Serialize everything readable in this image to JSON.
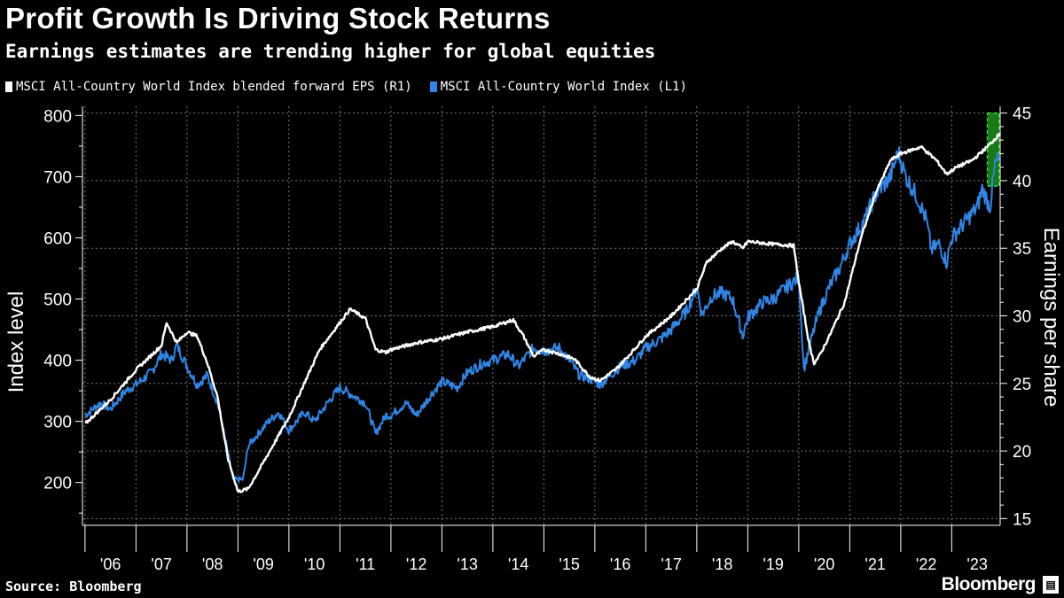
{
  "header": {
    "title": "Profit Growth Is Driving Stock Returns",
    "subtitle": "Earnings estimates are trending higher for global equities"
  },
  "legend": {
    "items": [
      {
        "label": "MSCI All-Country World Index blended forward EPS (R1)",
        "color": "#ffffff"
      },
      {
        "label": "MSCI All-Country World Index (L1)",
        "color": "#2f86e6"
      }
    ]
  },
  "footer": {
    "source": "Source: Bloomberg",
    "brand": "Bloomberg"
  },
  "chart_data": {
    "type": "line",
    "title": "Profit Growth Is Driving Stock Returns",
    "x_start": 2005.95,
    "x_end": 2023.95,
    "x_tick_labels": [
      "'06",
      "'07",
      "'08",
      "'09",
      "'10",
      "'11",
      "'12",
      "'13",
      "'14",
      "'15",
      "'16",
      "'17",
      "'18",
      "'19",
      "'20",
      "'21",
      "'22",
      "'23"
    ],
    "left_axis": {
      "label": "Index level",
      "ylim": [
        130,
        815
      ],
      "ticks": [
        200,
        300,
        400,
        500,
        600,
        700,
        800
      ]
    },
    "right_axis": {
      "label": "Earnings per share",
      "ylim": [
        14.5,
        45.5
      ],
      "ticks": [
        15,
        20,
        25,
        30,
        35,
        40,
        45
      ]
    },
    "grid": true,
    "highlight": {
      "x": [
        2023.7,
        2024.0
      ],
      "eps_range": [
        39.6,
        45
      ],
      "color": "#1fa31f"
    },
    "series": [
      {
        "name": "MSCI All-Country World Index (L1)",
        "axis": "left",
        "color": "#2f86e6",
        "x": [
          2006.0,
          2006.3,
          2006.5,
          2006.8,
          2007.0,
          2007.3,
          2007.5,
          2007.7,
          2007.8,
          2008.0,
          2008.2,
          2008.4,
          2008.6,
          2008.8,
          2008.9,
          2009.1,
          2009.2,
          2009.4,
          2009.6,
          2009.8,
          2010.0,
          2010.3,
          2010.5,
          2010.8,
          2011.0,
          2011.3,
          2011.5,
          2011.7,
          2011.9,
          2012.0,
          2012.3,
          2012.5,
          2012.8,
          2013.0,
          2013.3,
          2013.5,
          2013.8,
          2014.0,
          2014.3,
          2014.5,
          2014.8,
          2015.0,
          2015.3,
          2015.5,
          2015.7,
          2015.9,
          2016.1,
          2016.3,
          2016.5,
          2016.8,
          2017.0,
          2017.3,
          2017.5,
          2017.8,
          2018.0,
          2018.1,
          2018.3,
          2018.5,
          2018.7,
          2018.9,
          2019.0,
          2019.3,
          2019.5,
          2019.7,
          2020.0,
          2020.1,
          2020.2,
          2020.4,
          2020.6,
          2020.8,
          2021.0,
          2021.3,
          2021.5,
          2021.8,
          2021.95,
          2022.1,
          2022.3,
          2022.5,
          2022.6,
          2022.75,
          2022.9,
          2023.0,
          2023.2,
          2023.4,
          2023.5,
          2023.6,
          2023.75,
          2023.85,
          2023.95
        ],
        "values": [
          310,
          330,
          320,
          350,
          360,
          380,
          410,
          400,
          425,
          390,
          360,
          375,
          330,
          250,
          205,
          205,
          260,
          280,
          300,
          315,
          285,
          315,
          300,
          335,
          355,
          340,
          330,
          280,
          310,
          310,
          330,
          310,
          345,
          365,
          355,
          380,
          395,
          400,
          410,
          390,
          420,
          415,
          420,
          400,
          375,
          370,
          360,
          375,
          390,
          400,
          420,
          435,
          450,
          480,
          520,
          475,
          505,
          510,
          500,
          440,
          470,
          495,
          500,
          515,
          535,
          385,
          420,
          480,
          520,
          550,
          590,
          630,
          670,
          700,
          740,
          700,
          670,
          630,
          580,
          590,
          560,
          600,
          620,
          640,
          650,
          680,
          650,
          720,
          730
        ],
        "values_note": "index level, L1 axis"
      },
      {
        "name": "MSCI All-Country World Index blended forward EPS (R1)",
        "axis": "right",
        "color": "#ffffff",
        "x": [
          2006.0,
          2006.5,
          2007.0,
          2007.5,
          2007.6,
          2007.8,
          2008.0,
          2008.2,
          2008.4,
          2008.6,
          2008.8,
          2009.0,
          2009.2,
          2009.4,
          2009.7,
          2010.0,
          2010.3,
          2010.6,
          2010.9,
          2011.2,
          2011.5,
          2011.7,
          2011.9,
          2012.0,
          2012.5,
          2013.0,
          2013.5,
          2014.0,
          2014.4,
          2014.6,
          2014.8,
          2015.0,
          2015.3,
          2015.6,
          2015.9,
          2016.1,
          2016.4,
          2016.7,
          2017.0,
          2017.5,
          2018.0,
          2018.2,
          2018.5,
          2018.7,
          2018.9,
          2019.0,
          2019.5,
          2019.9,
          2020.0,
          2020.2,
          2020.3,
          2020.4,
          2020.6,
          2020.9,
          2021.2,
          2021.5,
          2021.8,
          2022.0,
          2022.4,
          2022.7,
          2022.9,
          2023.1,
          2023.4,
          2023.7,
          2023.95
        ],
        "values": [
          22.0,
          23.8,
          26.0,
          27.8,
          29.5,
          28.0,
          28.8,
          28.5,
          26.5,
          24.0,
          19.5,
          17.0,
          17.2,
          18.5,
          20.5,
          22.5,
          25.0,
          27.5,
          29.0,
          30.5,
          29.8,
          27.5,
          27.3,
          27.5,
          28.0,
          28.3,
          28.8,
          29.2,
          29.7,
          28.5,
          27.0,
          27.5,
          27.2,
          26.8,
          25.5,
          25.2,
          26.0,
          27.2,
          28.5,
          30.0,
          32.0,
          34.0,
          35.0,
          35.5,
          35.0,
          35.5,
          35.3,
          35.2,
          32.5,
          28.0,
          26.5,
          27.0,
          28.5,
          31.0,
          35.5,
          39.0,
          41.5,
          42.0,
          42.5,
          41.5,
          40.5,
          41.0,
          41.5,
          42.5,
          43.5
        ],
        "values_note": "EPS, R1 axis"
      }
    ]
  }
}
